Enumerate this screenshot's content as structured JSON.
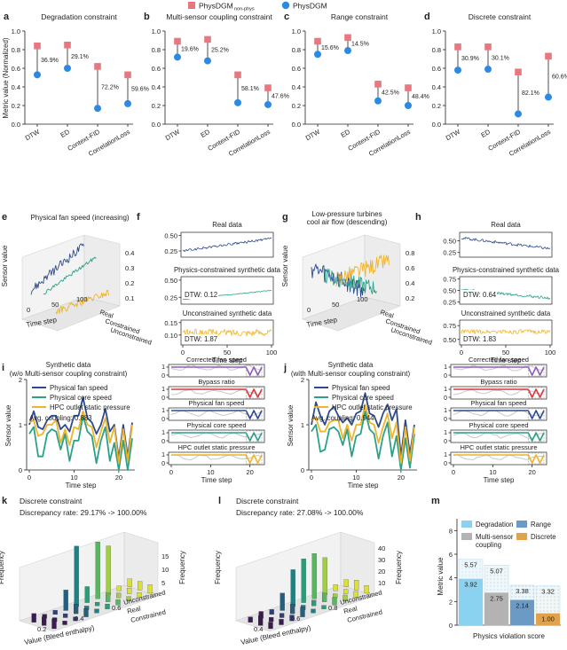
{
  "legend_top": {
    "pink": "PhysDGM",
    "pink_sub": "non-phys",
    "blue": "PhysDGM"
  },
  "colors": {
    "pink": "#e8777f",
    "blue": "#2b8be4",
    "navy": "#2c4b8f",
    "teal": "#2aa189",
    "gold": "#f0b429",
    "purple": "#8f5bbf",
    "red": "#d9383e",
    "lightblue": "#8ad2ef",
    "gray": "#b3b3b3",
    "steel": "#6b9ac4",
    "orange": "#e0a24a"
  },
  "chart_data": [
    {
      "panel": "a",
      "type": "scatter",
      "title": "Degradation constraint",
      "ylabel": "Metric value (Normalized)",
      "categories": [
        "DTW",
        "ED",
        "Context-FID",
        "CorrelationLoss"
      ],
      "ylim": [
        0,
        1
      ],
      "yticks": [
        "0.0",
        "0.2",
        "0.4",
        "0.6",
        "0.8",
        "1.0"
      ],
      "series": [
        {
          "name": "PhysDGM non-phys",
          "values": [
            0.84,
            0.85,
            0.62,
            0.53
          ]
        },
        {
          "name": "PhysDGM",
          "values": [
            0.53,
            0.6,
            0.17,
            0.22
          ]
        }
      ],
      "labels": [
        "36.9%",
        "29.1%",
        "72.2%",
        "59.6%"
      ]
    },
    {
      "panel": "b",
      "type": "scatter",
      "title": "Multi-sensor coupling constraint",
      "categories": [
        "DTW",
        "ED",
        "Context-FID",
        "CorrelationLoss"
      ],
      "ylim": [
        0,
        1
      ],
      "yticks": [
        "0.0",
        "0.2",
        "0.4",
        "0.6",
        "0.8",
        "1.0"
      ],
      "series": [
        {
          "name": "PhysDGM non-phys",
          "values": [
            0.89,
            0.91,
            0.53,
            0.39
          ]
        },
        {
          "name": "PhysDGM",
          "values": [
            0.72,
            0.68,
            0.23,
            0.21
          ]
        }
      ],
      "labels": [
        "19.6%",
        "25.2%",
        "58.1%",
        "47.6%"
      ]
    },
    {
      "panel": "c",
      "type": "scatter",
      "title": "Range constraint",
      "categories": [
        "DTW",
        "ED",
        "Context-FID",
        "CorrelationLoss"
      ],
      "ylim": [
        0,
        1
      ],
      "yticks": [
        "0.0",
        "0.2",
        "0.4",
        "0.6",
        "0.8",
        "1.0"
      ],
      "series": [
        {
          "name": "PhysDGM non-phys",
          "values": [
            0.89,
            0.93,
            0.43,
            0.39
          ]
        },
        {
          "name": "PhysDGM",
          "values": [
            0.75,
            0.79,
            0.25,
            0.2
          ]
        }
      ],
      "labels": [
        "15.6%",
        "14.5%",
        "42.5%",
        "48.4%"
      ]
    },
    {
      "panel": "d",
      "type": "scatter",
      "title": "Discrete constraint",
      "categories": [
        "DTW",
        "ED",
        "Context-FID",
        "CorrelationLoss"
      ],
      "ylim": [
        0,
        1
      ],
      "yticks": [
        "0.0",
        "0.2",
        "0.4",
        "0.6",
        "0.8",
        "1.0"
      ],
      "series": [
        {
          "name": "PhysDGM non-phys",
          "values": [
            0.83,
            0.83,
            0.56,
            0.73
          ]
        },
        {
          "name": "PhysDGM",
          "values": [
            0.58,
            0.59,
            0.11,
            0.29
          ]
        }
      ],
      "labels": [
        "30.9%",
        "30.1%",
        "82.1%",
        "60.6%"
      ]
    },
    {
      "panel": "e",
      "type": "line",
      "title": "Physical fan speed (increasing)",
      "zlabel": "Sensor value",
      "xlabel": "Time step",
      "xticks": [
        "0",
        "50",
        "100"
      ],
      "zticks": [
        "0.1",
        "0.2",
        "0.3",
        "0.4"
      ],
      "depth_labels": [
        "Real",
        "Constrained",
        "Unconstrained"
      ]
    },
    {
      "panel": "f",
      "type": "line",
      "xlabel": "Time step",
      "xticks": [
        "0",
        "50",
        "100"
      ],
      "subplots": [
        {
          "title": "Real data",
          "yticks": [
            "0.25",
            "0.50"
          ],
          "ylim": [
            0.15,
            0.55
          ],
          "start": 0.25,
          "end": 0.45,
          "noise": 0.02,
          "dtw": ""
        },
        {
          "title": "Physics-constrained synthetic data",
          "yticks": [
            "0.25",
            "0.50"
          ],
          "ylim": [
            0.15,
            0.55
          ],
          "start": 0.22,
          "end": 0.35,
          "noise": 0.005,
          "dtw": "DTW: 0.12"
        },
        {
          "title": "Unconstrained synthetic data",
          "yticks": [
            "0.10",
            "0.15"
          ],
          "ylim": [
            0.06,
            0.16
          ],
          "start": 0.11,
          "end": 0.11,
          "noise": 0.014,
          "dtw": "DTW: 1.87"
        }
      ]
    },
    {
      "panel": "g",
      "type": "line",
      "title": "Low-pressure turbines cool air flow (descending)",
      "zlabel": "Sensor value",
      "xlabel": "Time step",
      "xticks": [
        "0",
        "50",
        "100"
      ],
      "zticks": [
        "0.2",
        "0.4",
        "0.6",
        "0.8"
      ],
      "depth_labels": [
        "Real",
        "Constrained",
        "Unconstrained"
      ]
    },
    {
      "panel": "h",
      "type": "line",
      "xlabel": "Time step",
      "xticks": [
        "0",
        "50",
        "100"
      ],
      "subplots": [
        {
          "title": "Real data",
          "yticks": [
            "0.25",
            "0.50"
          ],
          "ylim": [
            0.15,
            0.68
          ],
          "start": 0.56,
          "end": 0.33,
          "noise": 0.03,
          "dtw": ""
        },
        {
          "title": "Physics-constrained synthetic data",
          "yticks": [
            "0.25",
            "0.50",
            "0.75"
          ],
          "ylim": [
            0.2,
            0.8
          ],
          "start": 0.52,
          "end": 0.33,
          "noise": 0.03,
          "dtw": "DTW: 0.64"
        },
        {
          "title": "Unconstrained synthetic data",
          "yticks": [
            "0.50",
            "0.75"
          ],
          "ylim": [
            0.4,
            0.85
          ],
          "start": 0.64,
          "end": 0.64,
          "noise": 0.04,
          "dtw": "DTW: 1.83"
        }
      ]
    },
    {
      "panel": "i",
      "type": "line",
      "title": "Synthetic data",
      "subtitle": "(w/o Multi-sensor coupling constraint)",
      "ylabel": "Sensor value",
      "xlabel": "Time step",
      "xticks": [
        "0",
        "10",
        "20"
      ],
      "yticks": [
        "0",
        "1",
        "2"
      ],
      "ylim": [
        0,
        2
      ],
      "annotation": "Avg. coupling: 0.883",
      "x": [
        0,
        1,
        2,
        3,
        4,
        5,
        6,
        7,
        8,
        9,
        10,
        11,
        12,
        13,
        14,
        15,
        16,
        17,
        18,
        19,
        20,
        21,
        22,
        23
      ],
      "series": [
        {
          "name": "Physical fan speed",
          "values": [
            1.0,
            1.3,
            0.95,
            0.9,
            1.1,
            1.2,
            1.2,
            0.9,
            1.0,
            0.85,
            1.2,
            1.2,
            1.6,
            1.15,
            1.05,
            0.8,
            1.0,
            1.35,
            0.85,
            1.0,
            0.25,
            1.0,
            0.3,
            1.05
          ]
        },
        {
          "name": "Physical core speed",
          "values": [
            0.8,
            0.95,
            0.3,
            0.3,
            0.8,
            0.9,
            0.85,
            0.45,
            0.8,
            0.2,
            0.65,
            0.65,
            1.2,
            0.85,
            0.75,
            0.15,
            0.65,
            0.95,
            0.2,
            0.6,
            0.0,
            0.65,
            0.0,
            0.7
          ]
        },
        {
          "name": "HPC outlet static pressure",
          "values": [
            1.05,
            1.1,
            0.75,
            0.8,
            1.0,
            1.0,
            1.1,
            0.6,
            0.9,
            0.55,
            0.95,
            0.9,
            1.3,
            1.0,
            0.95,
            0.5,
            0.85,
            1.15,
            0.6,
            0.95,
            0.15,
            0.9,
            0.2,
            1.0
          ]
        }
      ],
      "mini_panels": [
        "Corrected fan speed",
        "Bypass ratio",
        "Physical fan speed",
        "Physical core speed",
        "HPC outlet static pressure"
      ]
    },
    {
      "panel": "j",
      "type": "line",
      "title": "Synthetic data",
      "subtitle": "(with Multi-sensor coupling constraint)",
      "ylabel": "Sensor value",
      "xlabel": "Time step",
      "xticks": [
        "0",
        "10",
        "20"
      ],
      "yticks": [
        "0",
        "1",
        "2"
      ],
      "ylim": [
        0,
        2
      ],
      "annotation": "Avg. coupling: 0.944",
      "x": [
        0,
        1,
        2,
        3,
        4,
        5,
        6,
        7,
        8,
        9,
        10,
        11,
        12,
        13,
        14,
        15,
        16,
        17,
        18,
        19,
        20,
        21,
        22,
        23
      ],
      "series": [
        {
          "name": "Physical fan speed",
          "values": [
            1.0,
            1.5,
            1.2,
            1.0,
            1.3,
            1.4,
            1.2,
            1.05,
            1.15,
            1.0,
            1.25,
            1.3,
            1.7,
            1.25,
            1.2,
            0.95,
            1.25,
            1.45,
            1.1,
            1.35,
            0.3,
            1.1,
            0.35,
            1.0
          ]
        },
        {
          "name": "Physical core speed",
          "values": [
            0.85,
            1.0,
            0.4,
            0.45,
            0.9,
            0.95,
            0.85,
            0.55,
            0.9,
            0.3,
            0.75,
            0.8,
            1.3,
            0.9,
            0.8,
            0.25,
            0.75,
            1.05,
            0.3,
            0.75,
            0.0,
            0.7,
            0.05,
            0.8
          ]
        },
        {
          "name": "HPC outlet static pressure",
          "values": [
            1.1,
            1.15,
            0.85,
            0.85,
            1.05,
            1.1,
            1.1,
            0.7,
            1.0,
            0.65,
            1.0,
            1.0,
            1.45,
            1.05,
            1.0,
            0.6,
            0.95,
            1.25,
            0.7,
            1.05,
            0.15,
            0.95,
            0.2,
            0.95
          ]
        }
      ],
      "mini_panels": [
        "Corrected fan speed",
        "Bypass ratio",
        "Physical fan speed",
        "Physical core speed",
        "HPC outlet static pressure"
      ]
    },
    {
      "panel": "k",
      "type": "bar",
      "title": "Discrete constraint",
      "annotation": "Discrepancy rate: 29.17% -> 100.00%",
      "zlabel": "Frequency",
      "xlabel": "Value (Bleed enthalpy)",
      "xticks": [
        "0.2",
        "0.4",
        "0.6"
      ],
      "zticks": [
        "5",
        "10",
        "15"
      ],
      "depth_labels": [
        "Unconstrained",
        "Real",
        "Constrained"
      ]
    },
    {
      "panel": "l",
      "type": "bar",
      "title": "Discrete constraint",
      "annotation": "Discrepancy rate: 27.08% -> 100.00%",
      "zlabel": "Frequency",
      "xlabel": "Value (Bleed enthalpy)",
      "xticks": [
        "0.4",
        "0.6",
        "0.8"
      ],
      "zticks": [
        "10",
        "20",
        "30",
        "40"
      ],
      "depth_labels": [
        "Unconstrained",
        "Real",
        "Constrained"
      ]
    },
    {
      "panel": "m",
      "type": "bar",
      "xlabel": "Physics violation score",
      "ylabel": "Metric value",
      "categories": [
        "Degradation",
        "Multi-sensor coupling",
        "Range",
        "Discrete"
      ],
      "ylim": [
        0,
        9
      ],
      "yticks": [
        "0",
        "2",
        "4",
        "6",
        "8"
      ],
      "series": [
        {
          "name": "non-phys",
          "values": [
            5.57,
            5.07,
            3.38,
            3.32
          ]
        },
        {
          "name": "phys",
          "values": [
            3.92,
            2.75,
            2.14,
            1.0
          ]
        }
      ],
      "labels_outer": [
        "5.57",
        "5.07",
        "3.38",
        "3.32"
      ],
      "labels_inner": [
        "3.92",
        "2.75",
        "2.14",
        "1.00"
      ]
    }
  ]
}
